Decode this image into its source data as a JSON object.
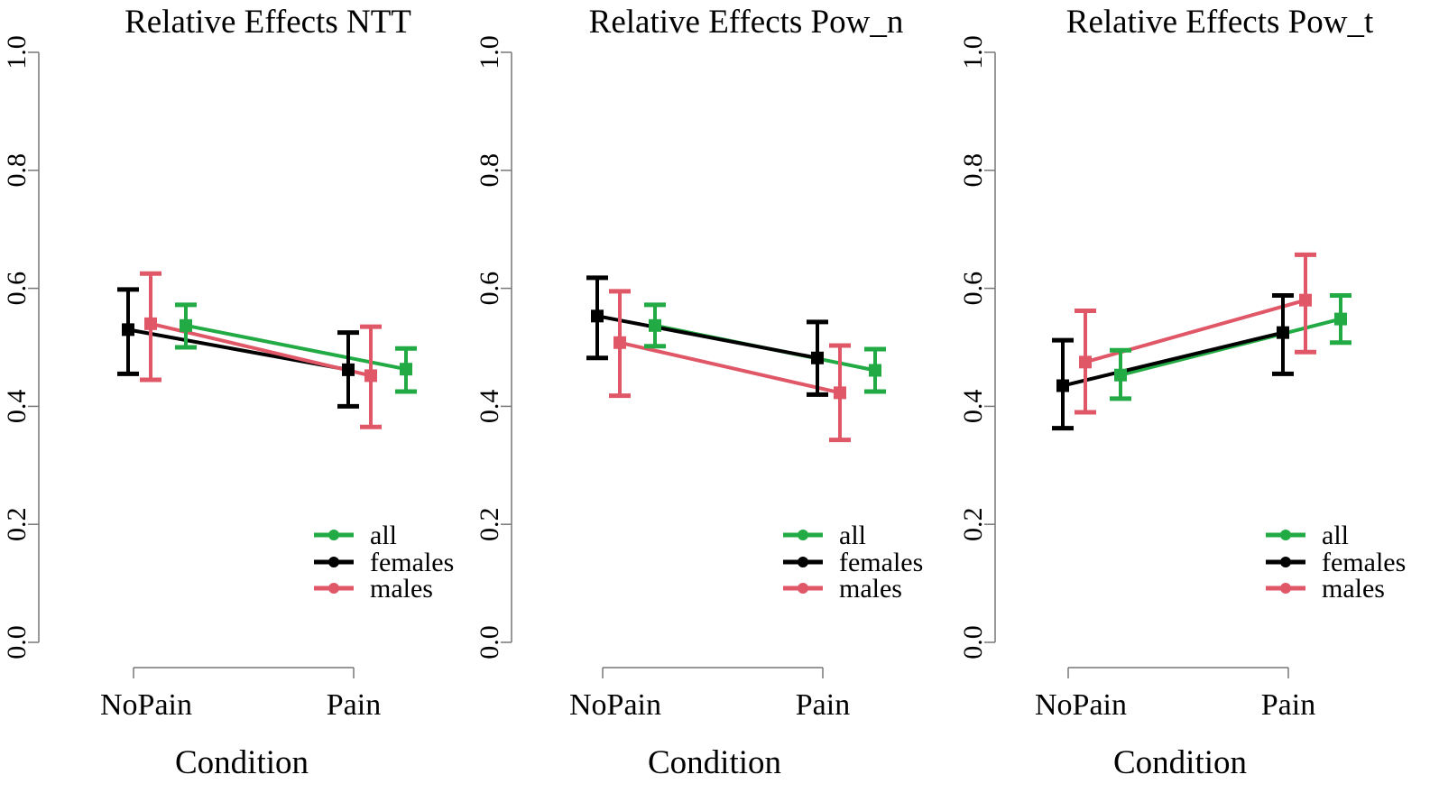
{
  "figure": {
    "y_tick_labels": [
      "0.0",
      "0.2",
      "0.4",
      "0.6",
      "0.8",
      "1.0"
    ]
  },
  "chart_data": [
    {
      "type": "line",
      "title": "Relative Effects  NTT",
      "xlabel": "Condition",
      "ylabel": "",
      "ylim": [
        0,
        1
      ],
      "categories": [
        "NoPain",
        "Pain"
      ],
      "legend": {
        "position": "bottom-right",
        "entries": [
          "all",
          "females",
          "males"
        ]
      },
      "series": [
        {
          "name": "all",
          "color": "#22aa44",
          "values": [
            0.537,
            0.463
          ],
          "lower": [
            0.5,
            0.425
          ],
          "upper": [
            0.572,
            0.498
          ]
        },
        {
          "name": "females",
          "color": "#000000",
          "values": [
            0.53,
            0.462
          ],
          "lower": [
            0.455,
            0.4
          ],
          "upper": [
            0.598,
            0.525
          ]
        },
        {
          "name": "males",
          "color": "#e05868",
          "values": [
            0.54,
            0.452
          ],
          "lower": [
            0.445,
            0.365
          ],
          "upper": [
            0.625,
            0.535
          ]
        }
      ]
    },
    {
      "type": "line",
      "title": "Relative Effects  Pow_n",
      "xlabel": "Condition",
      "ylabel": "",
      "ylim": [
        0,
        1
      ],
      "categories": [
        "NoPain",
        "Pain"
      ],
      "legend": {
        "position": "bottom-right",
        "entries": [
          "all",
          "females",
          "males"
        ]
      },
      "series": [
        {
          "name": "all",
          "color": "#22aa44",
          "values": [
            0.537,
            0.461
          ],
          "lower": [
            0.502,
            0.425
          ],
          "upper": [
            0.572,
            0.497
          ]
        },
        {
          "name": "females",
          "color": "#000000",
          "values": [
            0.553,
            0.482
          ],
          "lower": [
            0.482,
            0.42
          ],
          "upper": [
            0.618,
            0.543
          ]
        },
        {
          "name": "males",
          "color": "#e05868",
          "values": [
            0.508,
            0.423
          ],
          "lower": [
            0.418,
            0.343
          ],
          "upper": [
            0.595,
            0.503
          ]
        }
      ]
    },
    {
      "type": "line",
      "title": "Relative Effects  Pow_t",
      "xlabel": "Condition",
      "ylabel": "",
      "ylim": [
        0,
        1
      ],
      "categories": [
        "NoPain",
        "Pain"
      ],
      "legend": {
        "position": "bottom-right",
        "entries": [
          "all",
          "females",
          "males"
        ]
      },
      "series": [
        {
          "name": "all",
          "color": "#22aa44",
          "values": [
            0.453,
            0.548
          ],
          "lower": [
            0.413,
            0.508
          ],
          "upper": [
            0.495,
            0.588
          ]
        },
        {
          "name": "females",
          "color": "#000000",
          "values": [
            0.435,
            0.525
          ],
          "lower": [
            0.363,
            0.455
          ],
          "upper": [
            0.512,
            0.588
          ]
        },
        {
          "name": "males",
          "color": "#e05868",
          "values": [
            0.475,
            0.58
          ],
          "lower": [
            0.39,
            0.492
          ],
          "upper": [
            0.562,
            0.657
          ]
        }
      ]
    }
  ]
}
